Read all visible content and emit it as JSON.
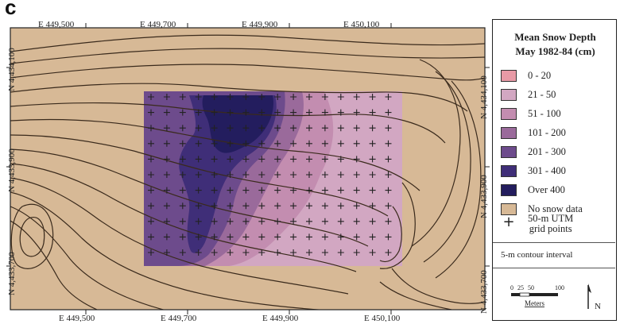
{
  "panel_letter": "c",
  "axes": {
    "top": [
      "E 449,500",
      "E 449,700",
      "E 449,900",
      "E 450,100"
    ],
    "bottom": [
      "E 449,500",
      "E 449,700",
      "E 449,900",
      "E 450,100"
    ],
    "left": [
      "N 4,434,100",
      "N 4,433,900",
      "N 4,433,700"
    ],
    "right": [
      "N 4,434,100",
      "N 4,433,900",
      "N 4,433,700"
    ]
  },
  "legend": {
    "title_line1": "Mean Snow Depth",
    "title_line2": "May 1982-84 (cm)",
    "classes": [
      {
        "label": "0  -  20",
        "color": "#e89aa6"
      },
      {
        "label": "21  -  50",
        "color": "#d2a7c2"
      },
      {
        "label": "51  -  100",
        "color": "#c38db0"
      },
      {
        "label": "101  -  200",
        "color": "#9a6a9b"
      },
      {
        "label": "201  -  300",
        "color": "#6d4b8c"
      },
      {
        "label": "301  -  400",
        "color": "#3f2e78"
      },
      {
        "label": "Over 400",
        "color": "#231d5e"
      },
      {
        "label": "No snow data",
        "color": "#d7b996"
      }
    ],
    "grid_points_line1": "50-m UTM",
    "grid_points_line2": "grid points",
    "contour_note": "5-m contour interval",
    "scale_ticks": [
      "0",
      "25",
      "50",
      "100"
    ],
    "scale_unit": "Meters",
    "north_label": "N"
  },
  "colors": {
    "background": "#d7b996",
    "contour": "#3a2a1c",
    "grid_point": "#222222"
  }
}
